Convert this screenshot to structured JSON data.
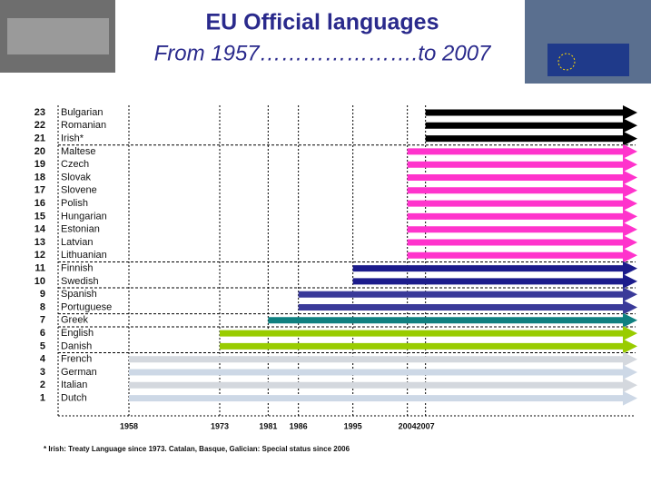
{
  "chart_data": {
    "type": "arrow-timeline",
    "title": "EU Official languages",
    "subtitle": "From 1957………………….to 2007",
    "footnote": "* Irish: Treaty Language since 1973. Catalan, Basque, Galician: Special status since 2006",
    "row_numbers": [
      23,
      22,
      21,
      20,
      19,
      18,
      17,
      16,
      15,
      14,
      13,
      12,
      11,
      10,
      9,
      8,
      7,
      6,
      5,
      4,
      3,
      2,
      1
    ],
    "categories": [
      "Bulgarian",
      "Romanian",
      "Irish*",
      "Maltese",
      "Czech",
      "Slovak",
      "Slovene",
      "Polish",
      "Hungarian",
      "Estonian",
      "Latvian",
      "Lithuanian",
      "Finnish",
      "Swedish",
      "Spanish",
      "Portuguese",
      "Greek",
      "English",
      "Danish",
      "French",
      "German",
      "Italian",
      "Dutch"
    ],
    "values": [
      2007,
      2007,
      2007,
      2004,
      2004,
      2004,
      2004,
      2004,
      2004,
      2004,
      2004,
      2004,
      1995,
      1995,
      1986,
      1986,
      1981,
      1973,
      1973,
      1958,
      1958,
      1958,
      1958
    ],
    "colors": [
      "#000000",
      "#000000",
      "#000000",
      "#ff33cc",
      "#ff33cc",
      "#ff33cc",
      "#ff33cc",
      "#ff33cc",
      "#ff33cc",
      "#ff33cc",
      "#ff33cc",
      "#ff33cc",
      "#1c1c8c",
      "#1c1c8c",
      "#3a3a99",
      "#3a3a99",
      "#0f8080",
      "#99cc00",
      "#99cc00",
      "#d4d8de",
      "#cdd8e6",
      "#d4d8de",
      "#cdd8e6"
    ],
    "xlim": [
      1946,
      2009
    ],
    "xticks": [
      1958,
      1973,
      1981,
      1986,
      1995,
      2004,
      2007
    ]
  }
}
